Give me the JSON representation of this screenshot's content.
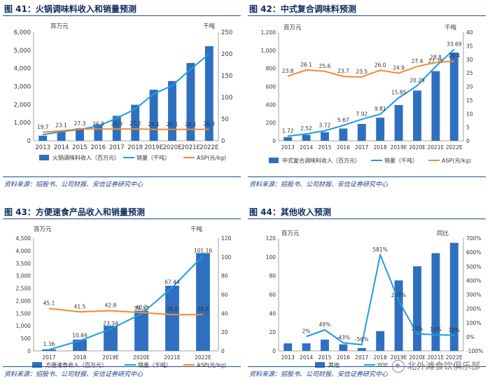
{
  "panels": [
    {
      "title": "图 41：火锅调味料收入和销量预测",
      "source": "资料来源：招股书、公司财报、安信证券研究中心"
    },
    {
      "title": "图 42：中式复合调味料预测",
      "source": "资料来源：招股书、公司财报、安信证券研究中心"
    },
    {
      "title": "图 43：方便速食产品收入和销量预测",
      "source": "资料来源：招股书、公司财报、安信证券研究中心"
    },
    {
      "title": "图 44：其他收入预测",
      "source": "资料来源：招股书、公司财报、安信证券研究中心"
    }
  ],
  "watermark": "北外滩食饮俱乐部",
  "colors": {
    "bar": "#2e6fc0",
    "line1": "#1f9be8",
    "line2": "#f28a2e",
    "title": "#0b2a5b"
  },
  "chart_data": [
    {
      "type": "bar",
      "title": "火锅调味料收入和销量预测",
      "categories": [
        "2013",
        "2014",
        "2015",
        "2016",
        "2017",
        "2018",
        "2019E",
        "2020E",
        "2021E",
        "2022E"
      ],
      "left_unit": "百万元",
      "right_unit": "千吨",
      "ylim": [
        0,
        6000
      ],
      "yticks": [
        "0",
        "1,000",
        "2,000",
        "3,000",
        "4,000",
        "5,000",
        "6,000"
      ],
      "y2lim": [
        0,
        250
      ],
      "y2ticks": [
        "0",
        "50",
        "100",
        "150",
        "200",
        "250"
      ],
      "series": [
        {
          "name": "火锅调味料收入（百万元）",
          "kind": "bar",
          "axis": "left",
          "values": [
            280,
            480,
            700,
            900,
            1380,
            1990,
            2820,
            3300,
            4300,
            5230
          ]
        },
        {
          "name": "销量（千吨）",
          "kind": "line",
          "axis": "right",
          "color": "#1f9be8",
          "values": [
            14,
            21,
            26,
            34,
            52,
            73,
            108,
            127,
            165,
            200
          ]
        },
        {
          "name": "ASP(元/kg)",
          "kind": "line",
          "axis": "right",
          "color": "#f28a2e",
          "values": [
            19.7,
            23.1,
            27.3,
            26.9,
            26.9,
            27.2,
            26.1,
            26.1,
            26.1,
            26.3
          ],
          "labels": [
            "19.7",
            "23.1",
            "27.3",
            "26.9",
            "26.9",
            "27.2",
            "26.1",
            "26.1",
            "26.1",
            "26.3"
          ]
        }
      ]
    },
    {
      "type": "bar",
      "title": "中式复合调味料预测",
      "categories": [
        "2013",
        "2014",
        "2015",
        "2016",
        "2017",
        "2018",
        "2019E",
        "2020E",
        "2021E",
        "2022E"
      ],
      "left_unit": "百万元",
      "right_unit": "千吨",
      "ylim": [
        0,
        1200
      ],
      "yticks": [
        "0",
        "200",
        "400",
        "600",
        "800",
        "1,000",
        "1,200"
      ],
      "y2lim": [
        0,
        40
      ],
      "y2ticks": [
        "0",
        "5",
        "10",
        "15",
        "20",
        "25",
        "30",
        "35",
        "40"
      ],
      "series": [
        {
          "name": "中式复合调味料收入（百万元）",
          "kind": "bar",
          "axis": "left",
          "values": [
            41,
            66,
            95,
            135,
            186,
            255,
            395,
            555,
            770,
            975
          ]
        },
        {
          "name": "销量（千吨）",
          "kind": "line",
          "axis": "right",
          "color": "#1f9be8",
          "values": [
            1.72,
            2.52,
            3.72,
            5.67,
            7.92,
            9.81,
            15.85,
            20.29,
            27.35,
            33.69
          ],
          "labels": [
            "1.72",
            "2.52",
            "3.72",
            "5.67",
            "7.92",
            "9.81",
            "15.85",
            "20.29",
            "27.35",
            "33.69"
          ]
        },
        {
          "name": "ASP(元/kg)",
          "kind": "line",
          "axis": "right",
          "color": "#f28a2e",
          "values": [
            23.8,
            26.1,
            25.6,
            23.7,
            23.5,
            26.0,
            24.9,
            27.4,
            28.8,
            29.4
          ],
          "labels": [
            "23.8",
            "26.1",
            "25.6",
            "23.7",
            "23.5",
            "26.0",
            "24.9",
            "27.4",
            "28.8",
            "29.4"
          ]
        }
      ]
    },
    {
      "type": "bar",
      "title": "方便速食产品收入和销量预测",
      "categories": [
        "2017",
        "2018",
        "2019E",
        "2020E",
        "2021E",
        "2022E"
      ],
      "left_unit": "百万元",
      "right_unit": "千吨",
      "ylim": [
        0,
        4500
      ],
      "yticks": [
        "0",
        "500",
        "1,000",
        "1,500",
        "2,000",
        "2,500",
        "3,000",
        "3,500",
        "4,000",
        "4,500"
      ],
      "y2lim": [
        0,
        120
      ],
      "y2ticks": [
        "0",
        "20",
        "40",
        "60",
        "80",
        "100",
        "120"
      ],
      "series": [
        {
          "name": "方便速食收入（百万元）",
          "kind": "bar",
          "axis": "left",
          "values": [
            60,
            450,
            1000,
            1600,
            2600,
            3900
          ]
        },
        {
          "name": "销量（千吨）",
          "kind": "line",
          "axis": "right",
          "color": "#1f9be8",
          "values": [
            1.36,
            10.84,
            23.34,
            39.37,
            67.44,
            101.16
          ],
          "labels": [
            "1.36",
            "10.84",
            "23.34",
            "39.37",
            "67.44",
            "101.16"
          ]
        },
        {
          "name": "ASP(元/kg)",
          "kind": "line",
          "axis": "right",
          "color": "#f28a2e",
          "values": [
            45.1,
            41.5,
            42.8,
            40.7,
            38.6,
            38.6
          ],
          "labels": [
            "45.1",
            "41.5",
            "42.8",
            "40.7",
            "38.6",
            "38.6"
          ]
        }
      ]
    },
    {
      "type": "bar",
      "title": "其他收入预测",
      "categories": [
        "2013",
        "2014",
        "2015",
        "2016",
        "2017",
        "2018",
        "2019E",
        "2020E",
        "2021E",
        "2022E"
      ],
      "left_unit": "百万元",
      "right_unit": "同比",
      "ylim": [
        0,
        120
      ],
      "yticks": [
        "0",
        "20",
        "40",
        "60",
        "80",
        "100",
        "120"
      ],
      "y2lim": [
        -100,
        700
      ],
      "y2ticks": [
        "-100%",
        "0%",
        "100%",
        "200%",
        "300%",
        "400%",
        "500%",
        "600%",
        "700%"
      ],
      "series": [
        {
          "name": "其他",
          "kind": "bar",
          "axis": "left",
          "values": [
            8,
            8,
            12,
            7,
            3,
            21,
            75,
            90,
            104,
            115
          ]
        },
        {
          "name": "YOY",
          "kind": "line",
          "axis": "right",
          "color": "#1f9be8",
          "values": [
            null,
            2,
            49,
            -43,
            -56,
            581,
            257,
            20,
            15,
            10
          ],
          "labels": [
            null,
            "2%",
            "49%",
            "-43%",
            "-56%",
            "581%",
            "257%",
            "20%",
            "15%",
            "10%"
          ]
        }
      ]
    }
  ]
}
